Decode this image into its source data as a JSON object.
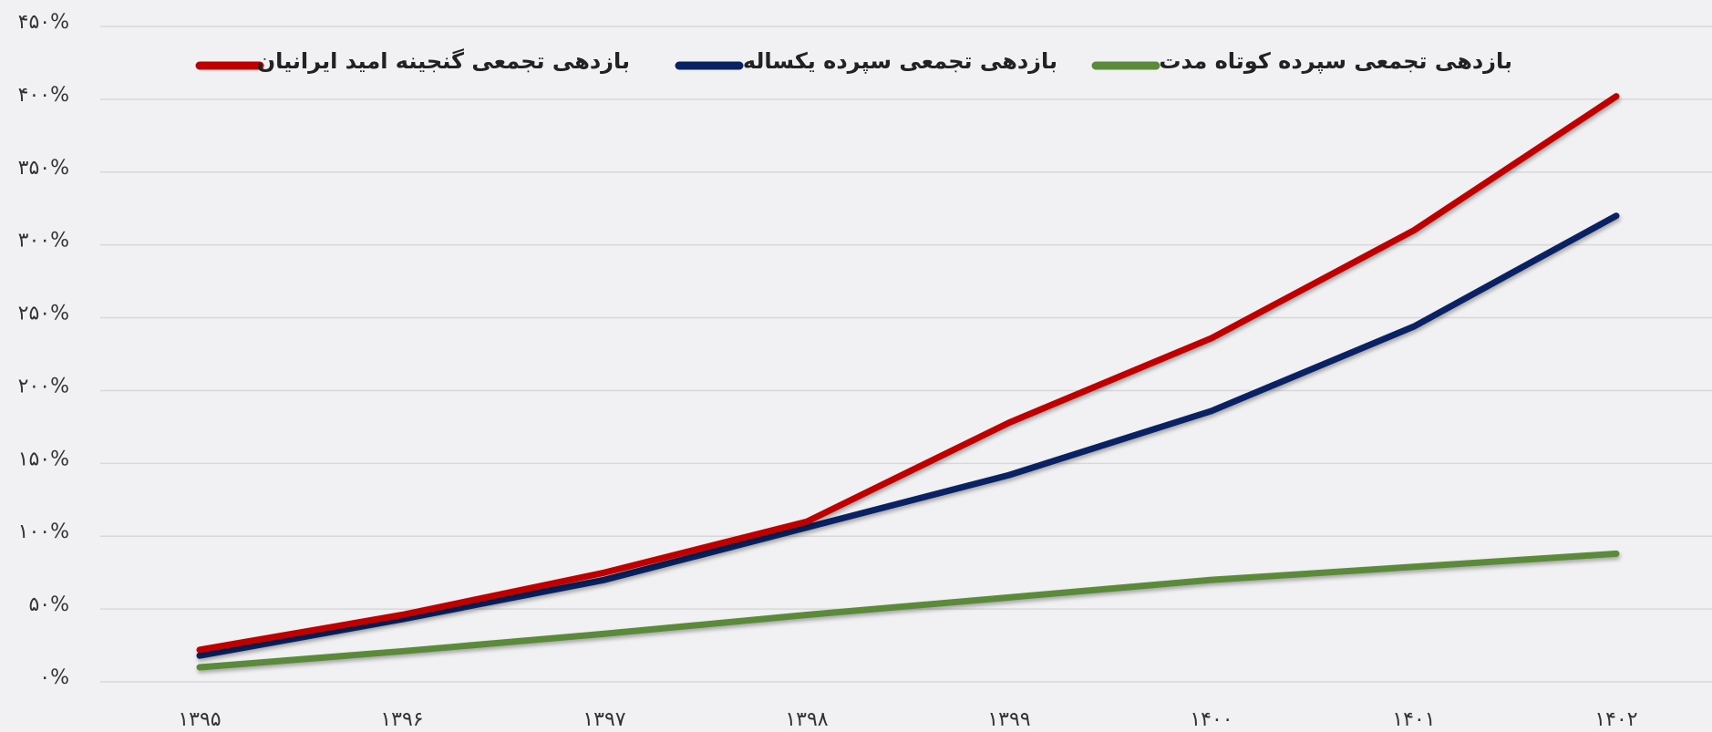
{
  "chart_data": {
    "type": "line",
    "categories": [
      "۱۳۹۵",
      "۱۳۹۶",
      "۱۳۹۷",
      "۱۳۹۸",
      "۱۳۹۹",
      "۱۴۰۰",
      "۱۴۰۱",
      "۱۴۰۲"
    ],
    "series": [
      {
        "name": "بازدهی تجمعی گنجینه امید ایرانیان",
        "color": "#c00000",
        "values": [
          22,
          46,
          75,
          110,
          178,
          236,
          310,
          402
        ]
      },
      {
        "name": "بازدهی تجمعی سپرده یکساله",
        "color": "#0a2263",
        "values": [
          18,
          43,
          70,
          106,
          142,
          186,
          244,
          320
        ]
      },
      {
        "name": "بازدهی تجمعی سپرده کوتاه مدت",
        "color": "#5b8a3a",
        "values": [
          10,
          21,
          33,
          46,
          58,
          70,
          79,
          88
        ]
      }
    ],
    "ylim": [
      0,
      450
    ],
    "yticks": [
      {
        "value": 0,
        "label": "۰%"
      },
      {
        "value": 50,
        "label": "۵۰%"
      },
      {
        "value": 100,
        "label": "۱۰۰%"
      },
      {
        "value": 150,
        "label": "۱۵۰%"
      },
      {
        "value": 200,
        "label": "۲۰۰%"
      },
      {
        "value": 250,
        "label": "۲۵۰%"
      },
      {
        "value": 300,
        "label": "۳۰۰%"
      },
      {
        "value": 350,
        "label": "۳۵۰%"
      },
      {
        "value": 400,
        "label": "۴۰۰%"
      },
      {
        "value": 450,
        "label": "۴۵۰%"
      }
    ],
    "grid": true,
    "legend": "top"
  }
}
